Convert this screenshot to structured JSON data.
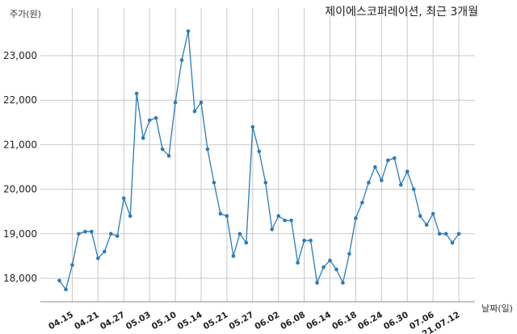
{
  "chart_data": {
    "type": "line",
    "title": "제이에스코퍼레이션, 최근 3개월",
    "ylabel": "주가(원)",
    "xlabel": "날짜(일)",
    "ylim": [
      17500,
      23700
    ],
    "yticks": [
      18000,
      19000,
      20000,
      21000,
      22000,
      23000
    ],
    "ytick_labels": [
      "18,000",
      "19,000",
      "20,000",
      "21,000",
      "22,000",
      "23,000"
    ],
    "grid": true,
    "line_color": "#2b7bb9",
    "xtick_labels": [
      "04.15",
      "04.21",
      "04.27",
      "05.03",
      "05.10",
      "05.14",
      "05.21",
      "05.27",
      "06.02",
      "06.08",
      "06.14",
      "06.18",
      "06.24",
      "06.30",
      "07.06",
      "21.07.12"
    ],
    "xtick_index": [
      2,
      6,
      10,
      14,
      18,
      22,
      26,
      30,
      34,
      38,
      42,
      46,
      50,
      54,
      58,
      62
    ],
    "series": [
      {
        "values": [
          17950,
          17750,
          18300,
          19000,
          19050,
          19050,
          18450,
          18600,
          19000,
          18950,
          19800,
          19400,
          22150,
          21150,
          21550,
          21600,
          20900,
          20750,
          21950,
          22900,
          23550,
          21750,
          21950,
          20900,
          20150,
          19450,
          19400,
          18500,
          19000,
          18800,
          21400,
          20850,
          20150,
          19100,
          19400,
          19300,
          19300,
          18350,
          18850,
          18850,
          17900,
          18250,
          18400,
          18200,
          17900,
          18550,
          19350,
          19700,
          20150,
          20500,
          20200,
          20650,
          20700,
          20100,
          20400,
          20000,
          19400,
          19200,
          19450,
          19000,
          19000,
          18800,
          19000
        ]
      }
    ]
  }
}
